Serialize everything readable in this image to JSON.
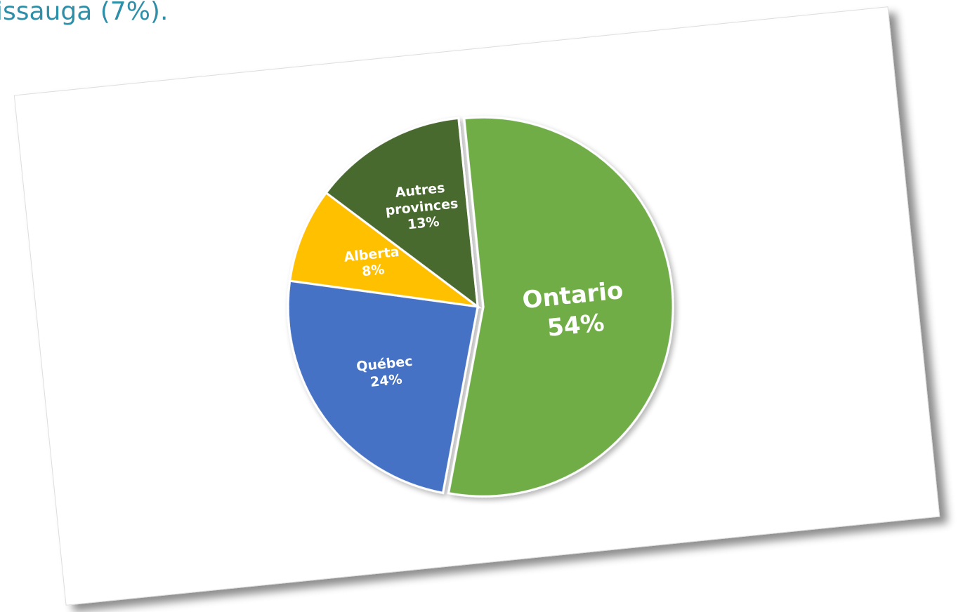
{
  "caption": "issauga (7%).",
  "chart_data": {
    "type": "pie",
    "categories": [
      "Ontario",
      "Québec",
      "Alberta",
      "Autres provinces"
    ],
    "values": [
      54,
      24,
      8,
      13
    ],
    "value_labels": [
      "54%",
      "24%",
      "8%",
      "13%"
    ],
    "colors": [
      "#70ad47",
      "#4472c4",
      "#ffc000",
      "#4a6a2e"
    ]
  }
}
